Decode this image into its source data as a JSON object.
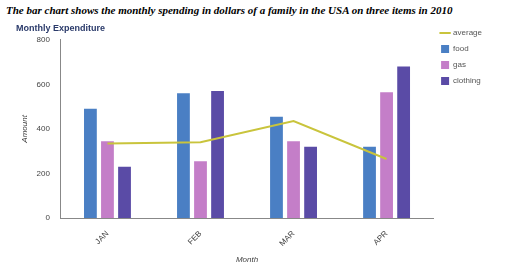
{
  "chart_data": {
    "type": "bar",
    "caption": "The bar chart shows the monthly spending in dollars of a family in the USA on three items in 2010",
    "title": "Monthly Expenditure",
    "x_label": "Month",
    "y_label": "Amount",
    "categories": [
      "JAN",
      "FEB",
      "MAR",
      "APR"
    ],
    "series": [
      {
        "name": "food",
        "color": "#4a7fc4",
        "values": [
          490,
          560,
          455,
          320
        ]
      },
      {
        "name": "gas",
        "color": "#c47ec8",
        "values": [
          345,
          255,
          345,
          565
        ]
      },
      {
        "name": "clothing",
        "color": "#5a4ba6",
        "values": [
          230,
          570,
          320,
          680
        ]
      },
      {
        "name": "average",
        "color": "#c9c43c",
        "type": "line",
        "marker": "none",
        "values": [
          335,
          340,
          435,
          265
        ]
      }
    ],
    "ylim": [
      0,
      800
    ],
    "yticks": [
      0,
      200,
      400,
      600,
      800
    ],
    "grid": false,
    "legend": "right"
  }
}
